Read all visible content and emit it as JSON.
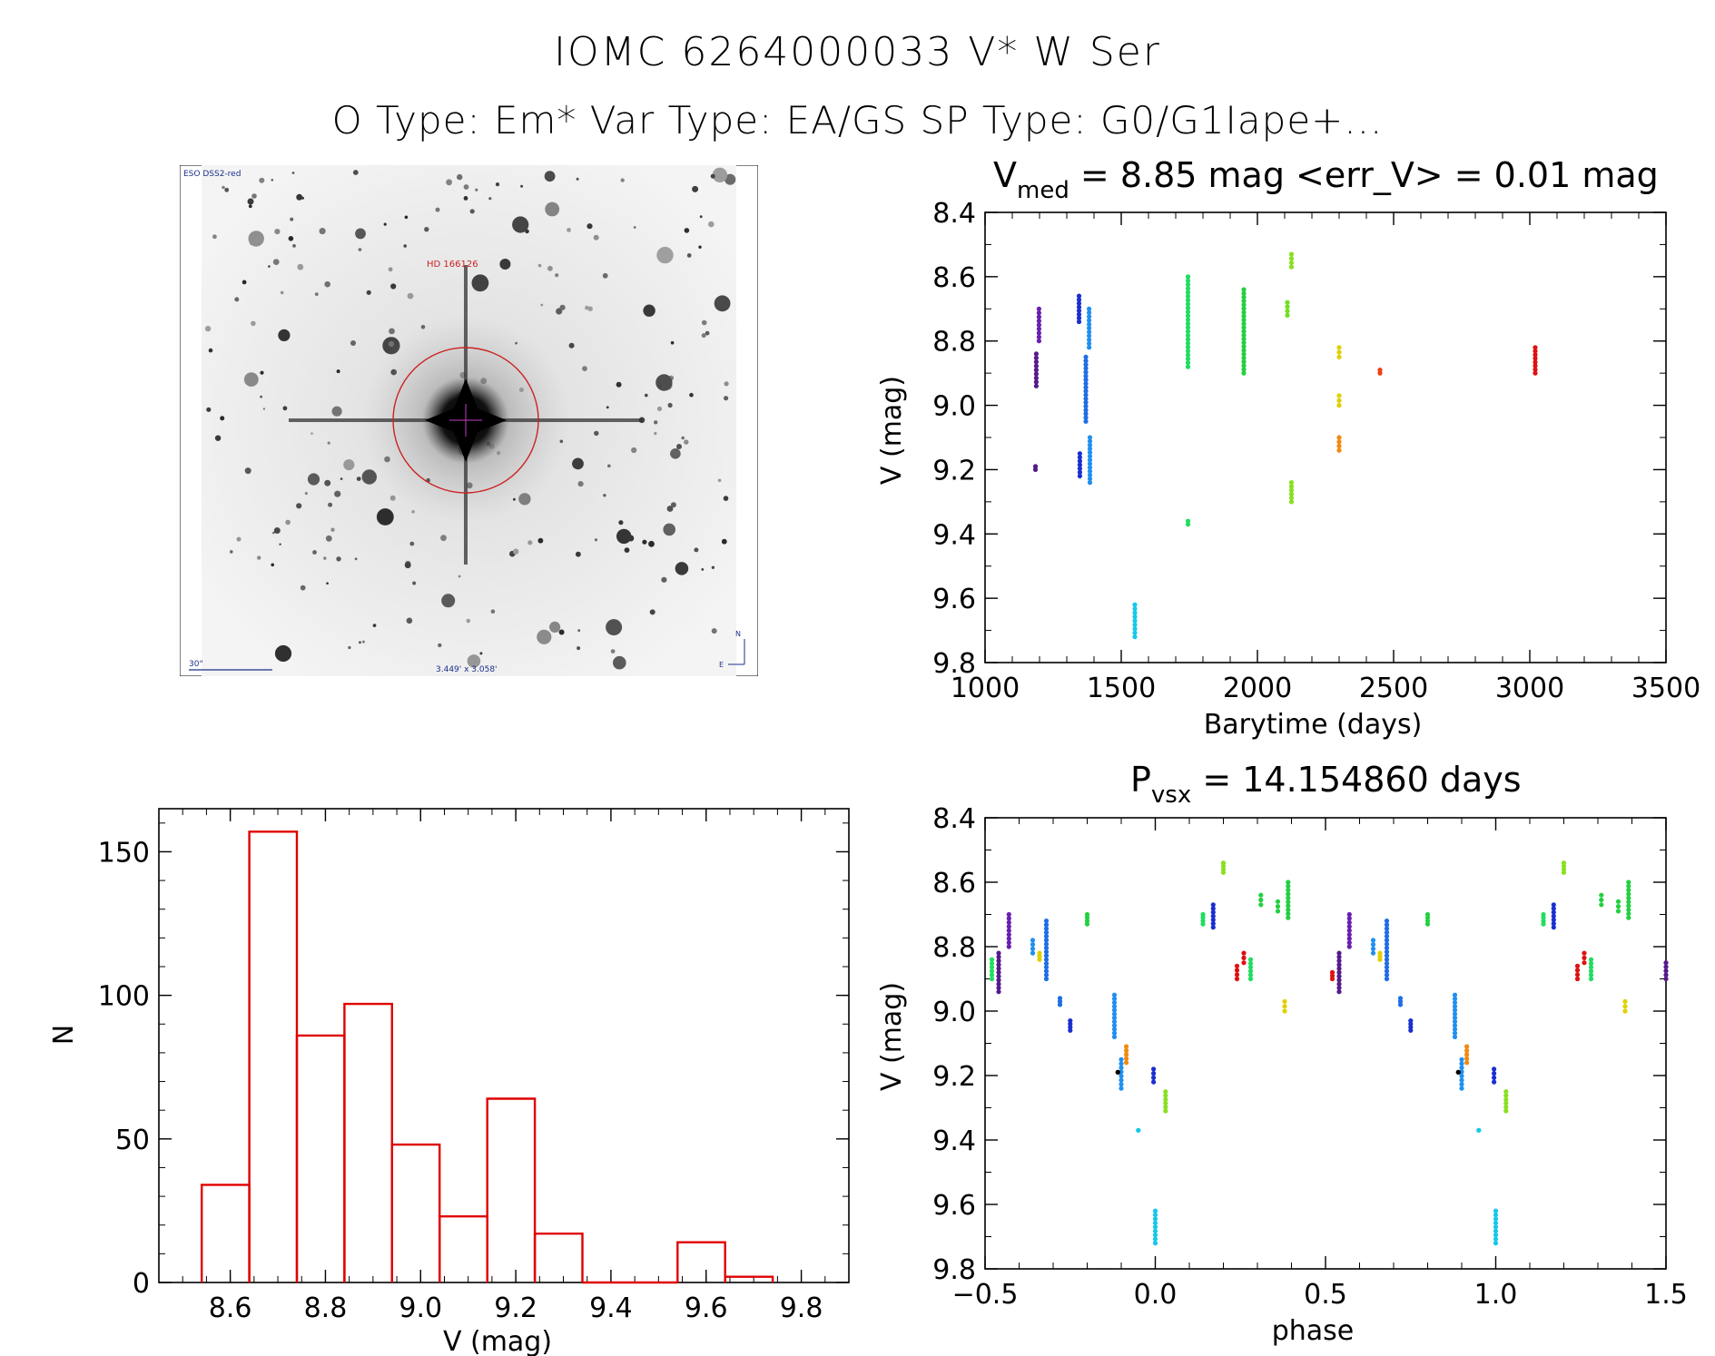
{
  "header": {
    "line1": "IOMC 6264000033   V* W Ser",
    "line2": "O Type: Em*  Var Type: EA/GS  SP Type: G0/G1Iape+..."
  },
  "finder": {
    "survey_label": "ESO DSS2-red",
    "target_label": "HD 166126",
    "scale_label": "30\"",
    "fov_label": "3.449' x 3.058'",
    "north_label": "N",
    "east_label": "E",
    "colors": {
      "circle": "#cc2222",
      "labels": "#1a2f8a",
      "target": "#cc2222"
    }
  },
  "chart_data": [
    {
      "id": "lightcurve",
      "type": "scatter",
      "title": "V_med = 8.85 mag <err_V> = 0.01 mag",
      "title_parts": {
        "a": "V",
        "sub": "med",
        "b": " = 8.85 mag <err_V> = 0.01 mag"
      },
      "xlabel": "Barytime (days)",
      "ylabel": "V (mag)",
      "xlim": [
        1000,
        3500
      ],
      "ylim": [
        9.8,
        8.4
      ],
      "xticks": [
        1000,
        1500,
        2000,
        2500,
        3000,
        3500
      ],
      "xtick_labels": [
        "1000",
        "1500",
        "2000",
        "2500",
        "3000",
        "3500"
      ],
      "yticks": [
        8.4,
        8.6,
        8.8,
        9.0,
        9.2,
        9.4,
        9.6,
        9.8
      ],
      "ytick_labels": [
        "8.4",
        "8.6",
        "8.8",
        "9.0",
        "9.2",
        "9.4",
        "9.6",
        "9.8"
      ],
      "series": [
        {
          "name": "1190",
          "color": "#551a8b",
          "x": 1188,
          "ymin": 8.84,
          "ymax": 8.94
        },
        {
          "name": "1200",
          "color": "#6a1fb0",
          "x": 1198,
          "ymin": 8.7,
          "ymax": 8.8
        },
        {
          "name": "1190b",
          "color": "#551a8b",
          "x": 1185,
          "ymin": 9.19,
          "ymax": 9.2
        },
        {
          "name": "1340",
          "color": "#1a2fd0",
          "x": 1345,
          "ymin": 8.66,
          "ymax": 8.74
        },
        {
          "name": "1345",
          "color": "#1a2fd0",
          "x": 1348,
          "ymin": 9.15,
          "ymax": 9.22
        },
        {
          "name": "1370",
          "color": "#1e6ee6",
          "x": 1370,
          "ymin": 8.85,
          "ymax": 9.05
        },
        {
          "name": "1380",
          "color": "#2090f0",
          "x": 1382,
          "ymin": 8.7,
          "ymax": 8.82
        },
        {
          "name": "1385",
          "color": "#2090f0",
          "x": 1385,
          "ymin": 9.1,
          "ymax": 9.24
        },
        {
          "name": "1550",
          "color": "#16c8ea",
          "x": 1550,
          "ymin": 9.62,
          "ymax": 9.72
        },
        {
          "name": "1740",
          "color": "#20dd60",
          "x": 1745,
          "ymin": 8.6,
          "ymax": 8.88
        },
        {
          "name": "1745",
          "color": "#20dd60",
          "x": 1745,
          "ymin": 9.36,
          "ymax": 9.37
        },
        {
          "name": "1950",
          "color": "#22d040",
          "x": 1950,
          "ymin": 8.64,
          "ymax": 8.9
        },
        {
          "name": "2110",
          "color": "#70e020",
          "x": 2110,
          "ymin": 8.68,
          "ymax": 8.72
        },
        {
          "name": "2125",
          "color": "#88e020",
          "x": 2125,
          "ymin": 8.53,
          "ymax": 8.57
        },
        {
          "name": "2125b",
          "color": "#88e020",
          "x": 2125,
          "ymin": 9.24,
          "ymax": 9.3
        },
        {
          "name": "2300",
          "color": "#e0d000",
          "x": 2300,
          "ymin": 8.82,
          "ymax": 8.85
        },
        {
          "name": "2300b",
          "color": "#e0d000",
          "x": 2300,
          "ymin": 8.97,
          "ymax": 9.0
        },
        {
          "name": "2300c",
          "color": "#f08a10",
          "x": 2300,
          "ymin": 9.1,
          "ymax": 9.14
        },
        {
          "name": "2450",
          "color": "#f04010",
          "x": 2450,
          "ymin": 8.89,
          "ymax": 8.9
        },
        {
          "name": "3020",
          "color": "#e01010",
          "x": 3020,
          "ymin": 8.82,
          "ymax": 8.9
        }
      ]
    },
    {
      "id": "histogram",
      "type": "bar",
      "title": "",
      "xlabel": "V (mag)",
      "ylabel": "N",
      "xlim": [
        8.45,
        9.9
      ],
      "ylim": [
        0,
        165
      ],
      "xticks": [
        8.6,
        8.8,
        9.0,
        9.2,
        9.4,
        9.6,
        9.8
      ],
      "xtick_labels": [
        "8.6",
        "8.8",
        "9.0",
        "9.2",
        "9.4",
        "9.6",
        "9.8"
      ],
      "yticks": [
        0,
        50,
        100,
        150
      ],
      "ytick_labels": [
        "0",
        "50",
        "100",
        "150"
      ],
      "bin_edges": [
        8.54,
        8.64,
        8.74,
        8.84,
        8.94,
        9.04,
        9.14,
        9.24,
        9.34,
        9.44,
        9.54,
        9.64,
        9.74
      ],
      "values": [
        34,
        157,
        86,
        97,
        48,
        23,
        64,
        17,
        0,
        0,
        14,
        2
      ],
      "color": "#e00000"
    },
    {
      "id": "phased",
      "type": "scatter",
      "title": "P_vsx = 14.154860 days",
      "title_parts": {
        "a": "P",
        "sub": "vsx",
        "b": " = 14.154860 days"
      },
      "xlabel": "phase",
      "ylabel": "V (mag)",
      "xlim": [
        -0.5,
        1.5
      ],
      "ylim": [
        9.8,
        8.4
      ],
      "xticks": [
        -0.5,
        0.0,
        0.5,
        1.0,
        1.5
      ],
      "xtick_labels": [
        "−0.5",
        "0.0",
        "0.5",
        "1.0",
        "1.5"
      ],
      "yticks": [
        8.4,
        8.6,
        8.8,
        9.0,
        9.2,
        9.4,
        9.6,
        9.8
      ],
      "ytick_labels": [
        "8.4",
        "8.6",
        "8.8",
        "9.0",
        "9.2",
        "9.4",
        "9.6",
        "9.8"
      ],
      "series": [
        {
          "name": "p1",
          "color": "#551a8b",
          "x": -0.46,
          "ymin": 8.82,
          "ymax": 8.94
        },
        {
          "name": "p2",
          "color": "#6a1fb0",
          "x": -0.43,
          "ymin": 8.7,
          "ymax": 8.8
        },
        {
          "name": "p3",
          "color": "#20dd60",
          "x": -0.48,
          "ymin": 8.84,
          "ymax": 8.9
        },
        {
          "name": "p4",
          "color": "#2090f0",
          "x": -0.36,
          "ymin": 8.78,
          "ymax": 8.82
        },
        {
          "name": "p5",
          "color": "#1e6ee6",
          "x": -0.32,
          "ymin": 8.72,
          "ymax": 8.9
        },
        {
          "name": "p6",
          "color": "#e0d000",
          "x": -0.34,
          "ymin": 8.82,
          "ymax": 8.84
        },
        {
          "name": "p7",
          "color": "#1e6ee6",
          "x": -0.28,
          "ymin": 8.96,
          "ymax": 8.98
        },
        {
          "name": "p8",
          "color": "#1a2fd0",
          "x": -0.25,
          "ymin": 9.03,
          "ymax": 9.06
        },
        {
          "name": "p9",
          "color": "#22d040",
          "x": -0.2,
          "ymin": 8.7,
          "ymax": 8.73
        },
        {
          "name": "p10",
          "color": "#2090f0",
          "x": -0.12,
          "ymin": 8.95,
          "ymax": 9.08
        },
        {
          "name": "p11",
          "color": "#2090f0",
          "x": -0.1,
          "ymin": 9.15,
          "ymax": 9.24
        },
        {
          "name": "p12",
          "color": "#000000",
          "x": -0.11,
          "ymin": 9.19,
          "ymax": 9.19
        },
        {
          "name": "p13",
          "color": "#f08a10",
          "x": -0.085,
          "ymin": 9.11,
          "ymax": 9.16
        },
        {
          "name": "p14",
          "color": "#16c8ea",
          "x": -0.05,
          "ymin": 9.37,
          "ymax": 9.37
        },
        {
          "name": "p15",
          "color": "#1a2fd0",
          "x": -0.005,
          "ymin": 9.18,
          "ymax": 9.22
        },
        {
          "name": "p16",
          "color": "#16c8ea",
          "x": 0.0,
          "ymin": 9.62,
          "ymax": 9.72
        },
        {
          "name": "p17",
          "color": "#88e020",
          "x": 0.03,
          "ymin": 9.25,
          "ymax": 9.31
        },
        {
          "name": "p18",
          "color": "#20dd60",
          "x": 0.14,
          "ymin": 8.7,
          "ymax": 8.73
        },
        {
          "name": "p19",
          "color": "#1a2fd0",
          "x": 0.17,
          "ymin": 8.67,
          "ymax": 8.74
        },
        {
          "name": "p20",
          "color": "#88e020",
          "x": 0.2,
          "ymin": 8.54,
          "ymax": 8.57
        },
        {
          "name": "p21",
          "color": "#e01010",
          "x": 0.24,
          "ymin": 8.86,
          "ymax": 8.9
        },
        {
          "name": "p22",
          "color": "#e01010",
          "x": 0.26,
          "ymin": 8.82,
          "ymax": 8.85
        },
        {
          "name": "p23",
          "color": "#20dd60",
          "x": 0.28,
          "ymin": 8.84,
          "ymax": 8.9
        },
        {
          "name": "p24",
          "color": "#22d040",
          "x": 0.31,
          "ymin": 8.64,
          "ymax": 8.67
        },
        {
          "name": "p25",
          "color": "#22d040",
          "x": 0.36,
          "ymin": 8.66,
          "ymax": 8.69
        },
        {
          "name": "p26",
          "color": "#e0d000",
          "x": 0.38,
          "ymin": 8.97,
          "ymax": 9.0
        },
        {
          "name": "p27",
          "color": "#22d040",
          "x": 0.39,
          "ymin": 8.6,
          "ymax": 8.71
        },
        {
          "name": "q1",
          "color": "#551a8b",
          "x": 0.54,
          "ymin": 8.82,
          "ymax": 8.94
        },
        {
          "name": "q2",
          "color": "#6a1fb0",
          "x": 0.57,
          "ymin": 8.7,
          "ymax": 8.8
        },
        {
          "name": "q3",
          "color": "#e01010",
          "x": 0.52,
          "ymin": 8.88,
          "ymax": 8.9
        },
        {
          "name": "q4",
          "color": "#2090f0",
          "x": 0.64,
          "ymin": 8.78,
          "ymax": 8.82
        },
        {
          "name": "q5",
          "color": "#1e6ee6",
          "x": 0.68,
          "ymin": 8.72,
          "ymax": 8.9
        },
        {
          "name": "q6",
          "color": "#e0d000",
          "x": 0.66,
          "ymin": 8.82,
          "ymax": 8.84
        },
        {
          "name": "q7",
          "color": "#1e6ee6",
          "x": 0.72,
          "ymin": 8.96,
          "ymax": 8.98
        },
        {
          "name": "q8",
          "color": "#1a2fd0",
          "x": 0.75,
          "ymin": 9.03,
          "ymax": 9.06
        },
        {
          "name": "q9",
          "color": "#22d040",
          "x": 0.8,
          "ymin": 8.7,
          "ymax": 8.73
        },
        {
          "name": "q10",
          "color": "#2090f0",
          "x": 0.88,
          "ymin": 8.95,
          "ymax": 9.08
        },
        {
          "name": "q11",
          "color": "#2090f0",
          "x": 0.9,
          "ymin": 9.15,
          "ymax": 9.24
        },
        {
          "name": "q12",
          "color": "#000000",
          "x": 0.89,
          "ymin": 9.19,
          "ymax": 9.19
        },
        {
          "name": "q13",
          "color": "#f08a10",
          "x": 0.915,
          "ymin": 9.11,
          "ymax": 9.16
        },
        {
          "name": "q14",
          "color": "#16c8ea",
          "x": 0.95,
          "ymin": 9.37,
          "ymax": 9.37
        },
        {
          "name": "q15",
          "color": "#1a2fd0",
          "x": 0.995,
          "ymin": 9.18,
          "ymax": 9.22
        },
        {
          "name": "q16",
          "color": "#16c8ea",
          "x": 1.0,
          "ymin": 9.62,
          "ymax": 9.72
        },
        {
          "name": "q17",
          "color": "#88e020",
          "x": 1.03,
          "ymin": 9.25,
          "ymax": 9.31
        },
        {
          "name": "q18",
          "color": "#20dd60",
          "x": 1.14,
          "ymin": 8.7,
          "ymax": 8.73
        },
        {
          "name": "q19",
          "color": "#1a2fd0",
          "x": 1.17,
          "ymin": 8.67,
          "ymax": 8.74
        },
        {
          "name": "q20",
          "color": "#88e020",
          "x": 1.2,
          "ymin": 8.54,
          "ymax": 8.57
        },
        {
          "name": "q21",
          "color": "#e01010",
          "x": 1.24,
          "ymin": 8.86,
          "ymax": 8.9
        },
        {
          "name": "q22",
          "color": "#e01010",
          "x": 1.26,
          "ymin": 8.82,
          "ymax": 8.85
        },
        {
          "name": "q23",
          "color": "#20dd60",
          "x": 1.28,
          "ymin": 8.84,
          "ymax": 8.9
        },
        {
          "name": "q24",
          "color": "#22d040",
          "x": 1.31,
          "ymin": 8.64,
          "ymax": 8.67
        },
        {
          "name": "q25",
          "color": "#22d040",
          "x": 1.36,
          "ymin": 8.66,
          "ymax": 8.69
        },
        {
          "name": "q26",
          "color": "#e0d000",
          "x": 1.38,
          "ymin": 8.97,
          "ymax": 9.0
        },
        {
          "name": "q27",
          "color": "#22d040",
          "x": 1.39,
          "ymin": 8.6,
          "ymax": 8.71
        },
        {
          "name": "q28",
          "color": "#551a8b",
          "x": 1.5,
          "ymin": 8.85,
          "ymax": 8.9
        }
      ]
    }
  ]
}
